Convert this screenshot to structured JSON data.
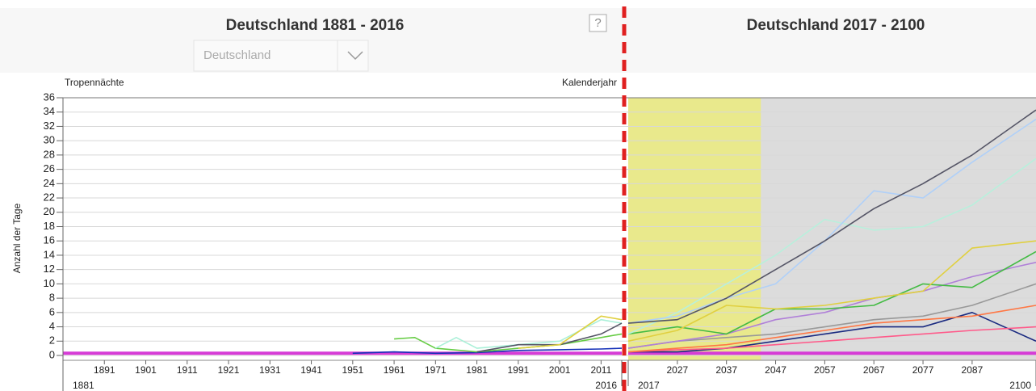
{
  "controls": {
    "region_select": "Deutschland",
    "help": "?"
  },
  "chart_data": [
    {
      "type": "line",
      "title": "Deutschland 1881 - 2016",
      "subtitle": "Tropennächte",
      "x_label": "Kalenderjahr",
      "y_label": "Anzahl der Tage",
      "xlim": [
        1881,
        2016
      ],
      "xticks": [
        1891,
        1901,
        1911,
        1921,
        1931,
        1941,
        1951,
        1961,
        1971,
        1981,
        1991,
        2001,
        2011
      ],
      "ylim": [
        0,
        36
      ],
      "yticks": [
        0,
        2,
        4,
        6,
        8,
        10,
        12,
        14,
        16,
        18,
        20,
        22,
        24,
        26,
        28,
        30,
        32,
        34,
        36
      ],
      "grid": true,
      "series": [
        {
          "color": "#d63bd6",
          "x": [
            1881,
            2016
          ],
          "values": [
            0.3,
            0.3
          ]
        },
        {
          "color": "#1530b8",
          "x": [
            1951,
            1961,
            1971,
            1981,
            1991,
            2001,
            2011,
            2016
          ],
          "values": [
            0.3,
            0.5,
            0.3,
            0.4,
            0.7,
            0.8,
            0.9,
            1.0
          ]
        },
        {
          "color": "#66cc44",
          "x": [
            1961,
            1966,
            1971,
            1981,
            1991,
            2001,
            2011,
            2016
          ],
          "values": [
            2.3,
            2.5,
            1,
            0.5,
            1,
            1.5,
            2.5,
            3
          ]
        },
        {
          "color": "#aaf0d8",
          "x": [
            1971,
            1976,
            1981,
            1991,
            2001,
            2011,
            2016
          ],
          "values": [
            1,
            2.5,
            1,
            1.5,
            2,
            5,
            4.5
          ]
        },
        {
          "color": "#555566",
          "x": [
            1981,
            1991,
            2001,
            2011,
            2016
          ],
          "values": [
            0.5,
            1.5,
            1.5,
            3,
            4.5
          ]
        },
        {
          "color": "#e0d040",
          "x": [
            1991,
            2001,
            2011,
            2016
          ],
          "values": [
            1,
            1.5,
            5.5,
            5
          ]
        }
      ]
    },
    {
      "type": "line",
      "title": "Deutschland 2017 - 2100",
      "xlim": [
        2017,
        2100
      ],
      "xticks": [
        2027,
        2037,
        2047,
        2057,
        2067,
        2077,
        2087
      ],
      "highlight": [
        2017,
        2044
      ],
      "series": [
        {
          "color": "#d63bd6",
          "x": [
            2017,
            2100
          ],
          "values": [
            0.3,
            0.3
          ]
        },
        {
          "color": "#1a2a80",
          "x": [
            2017,
            2027,
            2037,
            2047,
            2057,
            2067,
            2077,
            2087,
            2100
          ],
          "values": [
            0.5,
            0.5,
            1,
            2,
            3,
            4,
            4,
            6,
            2
          ]
        },
        {
          "color": "#ff5a8a",
          "x": [
            2017,
            2027,
            2037,
            2047,
            2057,
            2067,
            2077,
            2087,
            2100
          ],
          "values": [
            0.5,
            0.8,
            1,
            1.5,
            2,
            2.5,
            3,
            3.5,
            4
          ]
        },
        {
          "color": "#ff7744",
          "x": [
            2017,
            2027,
            2037,
            2047,
            2057,
            2067,
            2077,
            2087,
            2100
          ],
          "values": [
            0.5,
            1,
            1.5,
            2.5,
            3.5,
            4.5,
            5,
            5.5,
            7
          ]
        },
        {
          "color": "#999999",
          "x": [
            2017,
            2027,
            2037,
            2047,
            2057,
            2067,
            2077,
            2087,
            2100
          ],
          "values": [
            1,
            2,
            2.5,
            3,
            4,
            5,
            5.5,
            7,
            10
          ]
        },
        {
          "color": "#b080d8",
          "x": [
            2017,
            2027,
            2037,
            2047,
            2057,
            2067,
            2077,
            2087,
            2100
          ],
          "values": [
            1,
            2,
            3,
            5,
            6,
            8,
            9,
            11,
            13
          ]
        },
        {
          "color": "#44bb44",
          "x": [
            2017,
            2027,
            2037,
            2047,
            2057,
            2067,
            2077,
            2087,
            2100
          ],
          "values": [
            3,
            4,
            3,
            6.5,
            6.5,
            7,
            10,
            9.5,
            14.5
          ]
        },
        {
          "color": "#e0d040",
          "x": [
            2017,
            2027,
            2037,
            2047,
            2057,
            2067,
            2077,
            2087,
            2100
          ],
          "values": [
            2,
            3.5,
            7,
            6.5,
            7,
            8,
            9,
            15,
            16
          ]
        },
        {
          "color": "#b8f0dc",
          "x": [
            2017,
            2027,
            2037,
            2047,
            2057,
            2067,
            2077,
            2087,
            2100
          ],
          "values": [
            3,
            6,
            10,
            14,
            19,
            17.5,
            18,
            21,
            27.5
          ]
        },
        {
          "color": "#b0d0f8",
          "x": [
            2017,
            2027,
            2037,
            2047,
            2057,
            2067,
            2077,
            2087,
            2100
          ],
          "values": [
            4.5,
            5.5,
            8,
            10,
            16,
            23,
            22,
            27,
            33
          ]
        },
        {
          "color": "#555566",
          "x": [
            2017,
            2027,
            2037,
            2047,
            2057,
            2067,
            2077,
            2087,
            2100
          ],
          "values": [
            4.5,
            5,
            8,
            12,
            16,
            20.5,
            24,
            28,
            34.3
          ]
        }
      ]
    }
  ]
}
